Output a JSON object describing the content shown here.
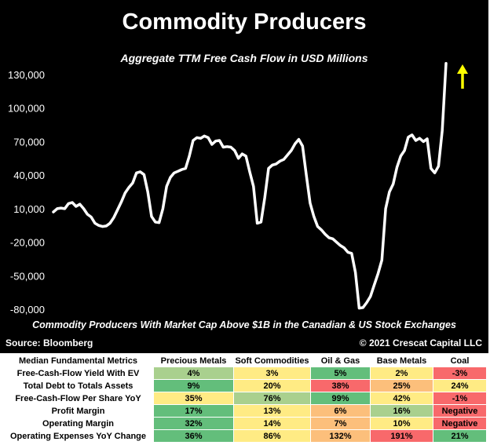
{
  "header": {
    "title": "Commodity Producers",
    "subtitle": "Aggregate TTM Free Cash Flow in USD Millions",
    "footnote": "Commodity Producers With Market Cap Above $1B in the Canadian & US Stock Exchanges",
    "source": "Source: Bloomberg",
    "copyright": "© 2021 Crescat Capital LLC"
  },
  "colors": {
    "background": "#000000",
    "line": "#ffffff",
    "arrow": "#ffff00",
    "green": "#63be7b",
    "light_green": "#a9d08e",
    "yellow": "#ffeb84",
    "orange": "#fcbf7b",
    "red": "#f8696b"
  },
  "chart_data": {
    "type": "line",
    "title": "Aggregate TTM Free Cash Flow in USD Millions",
    "xlabel": "",
    "ylabel": "",
    "ylim": [
      -85000,
      140000
    ],
    "yticks": [
      130000,
      100000,
      70000,
      40000,
      10000,
      -20000,
      -50000,
      -80000
    ],
    "ytick_labels": [
      "130,000",
      "100,000",
      "70,000",
      "40,000",
      "10,000",
      "-20,000",
      "-50,000",
      "-80,000"
    ],
    "grid": false,
    "annotation": "upward-arrow",
    "series": [
      {
        "values": [
          7000,
          10000,
          10500,
          10000,
          14500,
          15500,
          12000,
          14000,
          10000,
          5000,
          2500,
          -3000,
          -5000,
          -6000,
          -5500,
          -3000,
          2000,
          9000,
          16000,
          24000,
          29000,
          33000,
          42000,
          43000,
          40500,
          25000,
          3000,
          -2000,
          -2500,
          10000,
          30000,
          38000,
          42000,
          43500,
          45000,
          46000,
          57000,
          71000,
          73500,
          73000,
          75000,
          73500,
          67500,
          70500,
          71000,
          65000,
          65500,
          65000,
          62000,
          55000,
          59000,
          57000,
          43000,
          30000,
          -3000,
          -2000,
          20000,
          46000,
          49000,
          50000,
          52500,
          54000,
          58000,
          62000,
          68000,
          72000,
          66000,
          40000,
          15000,
          3000,
          -6000,
          -9000,
          -13000,
          -16000,
          -17000,
          -20000,
          -23000,
          -25000,
          -29000,
          -30000,
          -47000,
          -79000,
          -78500,
          -74000,
          -68500,
          -58000,
          -48000,
          -36000,
          10000,
          25000,
          32000,
          47000,
          57000,
          62000,
          74000,
          76000,
          71000,
          73000,
          70000,
          72500,
          46000,
          42000,
          48000,
          80000,
          140000
        ]
      }
    ]
  },
  "table": {
    "headers": [
      "Median Fundamental Metrics",
      "Precious Metals",
      "Soft Commodities",
      "Oil & Gas",
      "Base Metals",
      "Coal"
    ],
    "rows": [
      {
        "label": "Free-Cash-Flow Yield With EV",
        "cells": [
          {
            "v": "4%",
            "c": "light_green"
          },
          {
            "v": "3%",
            "c": "yellow"
          },
          {
            "v": "5%",
            "c": "green"
          },
          {
            "v": "2%",
            "c": "yellow"
          },
          {
            "v": "-3%",
            "c": "red"
          }
        ]
      },
      {
        "label": "Total Debt to Totals Assets",
        "cells": [
          {
            "v": "9%",
            "c": "green"
          },
          {
            "v": "20%",
            "c": "yellow"
          },
          {
            "v": "38%",
            "c": "red"
          },
          {
            "v": "25%",
            "c": "orange"
          },
          {
            "v": "24%",
            "c": "yellow"
          }
        ]
      },
      {
        "label": "Free-Cash-Flow Per Share YoY",
        "cells": [
          {
            "v": "35%",
            "c": "yellow"
          },
          {
            "v": "76%",
            "c": "light_green"
          },
          {
            "v": "99%",
            "c": "green"
          },
          {
            "v": "42%",
            "c": "yellow"
          },
          {
            "v": "-1%",
            "c": "red"
          }
        ]
      },
      {
        "label": "Profit Margin",
        "cells": [
          {
            "v": "17%",
            "c": "green"
          },
          {
            "v": "13%",
            "c": "yellow"
          },
          {
            "v": "6%",
            "c": "orange"
          },
          {
            "v": "16%",
            "c": "light_green"
          },
          {
            "v": "Negative",
            "c": "red"
          }
        ]
      },
      {
        "label": "Operating Margin",
        "cells": [
          {
            "v": "32%",
            "c": "green"
          },
          {
            "v": "14%",
            "c": "yellow"
          },
          {
            "v": "7%",
            "c": "orange"
          },
          {
            "v": "10%",
            "c": "yellow"
          },
          {
            "v": "Negative",
            "c": "red"
          }
        ]
      },
      {
        "label": "Operating Expenses YoY Change",
        "cells": [
          {
            "v": "36%",
            "c": "green"
          },
          {
            "v": "86%",
            "c": "yellow"
          },
          {
            "v": "132%",
            "c": "orange"
          },
          {
            "v": "191%",
            "c": "red"
          },
          {
            "v": "21%",
            "c": "green"
          }
        ]
      }
    ]
  }
}
